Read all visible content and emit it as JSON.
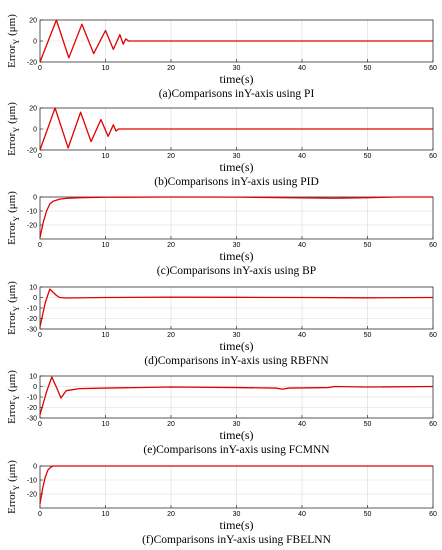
{
  "chart_data": [
    {
      "type": "line",
      "caption": "(a)Comparisons inY-axis using PI",
      "xlabel": "time(s)",
      "ylabel": "Error_Y (μm)",
      "ylabel_main": "Error",
      "ylabel_sub": "Y",
      "ylabel_unit": "(μm)",
      "xlim": [
        0,
        60
      ],
      "ylim": [
        -20,
        20
      ],
      "xticks": [
        0,
        10,
        20,
        30,
        40,
        50,
        60
      ],
      "yticks": [
        -20,
        0,
        20
      ],
      "grid": true,
      "color": "#e00000",
      "x": [
        0,
        2.5,
        4.4,
        6.4,
        8.2,
        10,
        11.2,
        12.2,
        12.7,
        13.1,
        13.5,
        60
      ],
      "y": [
        -20,
        20,
        -16,
        16,
        -12,
        10,
        -8,
        6,
        -3,
        2,
        0,
        0
      ]
    },
    {
      "type": "line",
      "caption": "(b)Comparisons inY-axis using PID",
      "xlabel": "time(s)",
      "ylabel": "Error_Y (μm)",
      "ylabel_main": "Error",
      "ylabel_sub": "Y",
      "ylabel_unit": "(μm)",
      "xlim": [
        0,
        60
      ],
      "ylim": [
        -20,
        20
      ],
      "xticks": [
        0,
        10,
        20,
        30,
        40,
        50,
        60
      ],
      "yticks": [
        -20,
        0,
        20
      ],
      "grid": true,
      "color": "#e00000",
      "x": [
        0,
        2.3,
        4.3,
        6.2,
        7.8,
        9.3,
        10.4,
        11.2,
        11.6,
        12,
        60
      ],
      "y": [
        -20,
        20,
        -18,
        16,
        -12,
        9,
        -7,
        4,
        -2,
        0,
        0
      ]
    },
    {
      "type": "line",
      "caption": "(c)Comparisons inY-axis using BP",
      "xlabel": "time(s)",
      "ylabel": "Error_Y (μm)",
      "ylabel_main": "Error",
      "ylabel_sub": "Y",
      "ylabel_unit": "(μm)",
      "xlim": [
        0,
        60
      ],
      "ylim": [
        -30,
        0
      ],
      "xticks": [
        0,
        10,
        20,
        30,
        40,
        50,
        60
      ],
      "yticks": [
        -20,
        -10,
        0
      ],
      "grid": true,
      "color": "#e00000",
      "x": [
        0,
        0.5,
        1,
        1.5,
        2,
        3,
        4,
        6,
        10,
        20,
        30,
        40,
        45,
        50,
        55,
        60
      ],
      "y": [
        -29,
        -18,
        -10,
        -5,
        -3,
        -1.5,
        -1,
        -0.5,
        -0.2,
        0,
        -0.1,
        -0.6,
        -0.9,
        -0.5,
        0,
        0
      ]
    },
    {
      "type": "line",
      "caption": "(d)Comparisons inY-axis using RBFNN",
      "xlabel": "time(s)",
      "ylabel": "Error_Y (μm)",
      "ylabel_main": "Error",
      "ylabel_sub": "Y",
      "ylabel_unit": "(μm)",
      "xlim": [
        0,
        60
      ],
      "ylim": [
        -30,
        10
      ],
      "xticks": [
        0,
        10,
        20,
        30,
        40,
        50,
        60
      ],
      "yticks": [
        -30,
        -20,
        -10,
        0,
        10
      ],
      "grid": true,
      "color": "#e00000",
      "x": [
        0,
        0.8,
        1.5,
        2,
        2.5,
        3,
        4,
        10,
        20,
        30,
        40,
        50,
        60
      ],
      "y": [
        -28,
        -5,
        8,
        5,
        2,
        0,
        -0.5,
        0,
        0.3,
        0.2,
        0,
        -0.3,
        0
      ]
    },
    {
      "type": "line",
      "caption": "(e)Comparisons inY-axis using FCMNN",
      "xlabel": "time(s)",
      "ylabel": "Error_Y (μm)",
      "ylabel_main": "Error",
      "ylabel_sub": "Y",
      "ylabel_unit": "(μm)",
      "xlim": [
        0,
        60
      ],
      "ylim": [
        -30,
        10
      ],
      "xticks": [
        0,
        10,
        20,
        30,
        40,
        50,
        60
      ],
      "yticks": [
        -30,
        -20,
        -10,
        0,
        10
      ],
      "grid": true,
      "color": "#e00000",
      "x": [
        0,
        1,
        1.8,
        2.6,
        3.2,
        4,
        6,
        10,
        20,
        30,
        36,
        37,
        38,
        44,
        45,
        50,
        60
      ],
      "y": [
        -27,
        -5,
        9,
        -2,
        -11,
        -4,
        -2,
        -1.5,
        -0.5,
        -1,
        -1.5,
        -2.5,
        -1.5,
        -1,
        0,
        -0.5,
        0
      ]
    },
    {
      "type": "line",
      "caption": "(f)Comparisons inY-axis using FBELNN",
      "xlabel": "time(s)",
      "ylabel": "Error_Y (μm)",
      "ylabel_main": "Error",
      "ylabel_sub": "Y",
      "ylabel_unit": "(μm)",
      "xlim": [
        0,
        60
      ],
      "ylim": [
        -30,
        0
      ],
      "xticks": [
        0,
        10,
        20,
        30,
        40,
        50,
        60
      ],
      "yticks": [
        -20,
        -10,
        0
      ],
      "grid": true,
      "color": "#e00000",
      "x": [
        0,
        0.4,
        0.8,
        1.2,
        1.6,
        2,
        60
      ],
      "y": [
        -27,
        -16,
        -8,
        -3,
        -1,
        0,
        0
      ]
    }
  ]
}
